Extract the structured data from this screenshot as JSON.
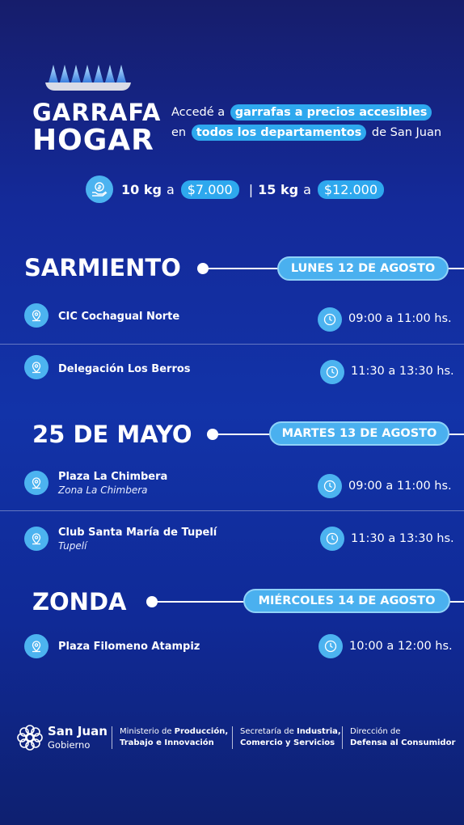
{
  "brand": {
    "title_line1": "GARRAFA",
    "title_line2": "HOGAR"
  },
  "tagline": {
    "line1_pre": "Accedé a",
    "line1_highlight": "garrafas a precios accesibles",
    "line2_pre": "en",
    "line2_highlight": "todos los departamentos",
    "line2_post": "de San Juan"
  },
  "prices": {
    "size1": "10 kg",
    "connector1": "a",
    "price1": "$7.000",
    "separator": "|",
    "size2": "15 kg",
    "connector2": "a",
    "price2": "$12.000"
  },
  "sections": [
    {
      "department": "SARMIENTO",
      "day": "LUNES 12 DE AGOSTO",
      "locations": [
        {
          "name": "CIC Cochagual Norte",
          "sub": "",
          "hours": "09:00 a 11:00 hs."
        },
        {
          "name": "Delegación Los Berros",
          "sub": "",
          "hours": "11:30 a 13:30 hs."
        }
      ]
    },
    {
      "department": "25 DE MAYO",
      "day": "MARTES 13 DE AGOSTO",
      "locations": [
        {
          "name": "Plaza La Chimbera",
          "sub": "Zona La Chimbera",
          "hours": "09:00 a 11:00 hs."
        },
        {
          "name": "Club Santa María de Tupelí",
          "sub": "Tupelí",
          "hours": "11:30 a 13:30 hs."
        }
      ]
    },
    {
      "department": "ZONDA",
      "day": "MIÉRCOLES 14 DE AGOSTO",
      "locations": [
        {
          "name": "Plaza Filomeno Atampiz",
          "sub": "",
          "hours": "10:00 a 12:00 hs."
        }
      ]
    }
  ],
  "footer": {
    "brand": "San Juan",
    "brand_sub": "Gobierno",
    "org1_pre": "Ministerio de ",
    "org1_bold1": "Producción,",
    "org1_bold2": "Trabajo e Innovación",
    "org2_pre": "Secretaría de ",
    "org2_bold1": "Industria,",
    "org2_bold2": "Comercio y Servicios",
    "org3_line1": "Dirección de",
    "org3_bold": "Defensa al Consumidor"
  },
  "colors": {
    "accent": "#2ea8ee",
    "icon_bg": "#4cb3f0",
    "background_top": "#161d6b",
    "background_mid": "#1233a8"
  },
  "icons": {
    "brand": "flame-burner-icon",
    "price": "hand-money-icon",
    "location": "map-pin-icon",
    "time": "clock-icon",
    "footer": "san-juan-flower-logo-icon"
  }
}
